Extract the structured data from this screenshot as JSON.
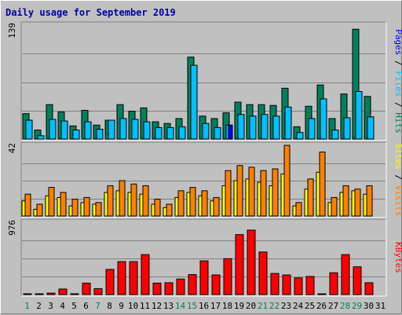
{
  "chart_data": {
    "type": "bar",
    "title": "Daily usage for September 2019",
    "categories": [
      "1",
      "2",
      "3",
      "4",
      "5",
      "6",
      "7",
      "8",
      "9",
      "10",
      "11",
      "12",
      "13",
      "14",
      "15",
      "16",
      "17",
      "18",
      "19",
      "20",
      "21",
      "22",
      "23",
      "24",
      "25",
      "26",
      "27",
      "28",
      "29",
      "30",
      "31"
    ],
    "weekend_days": [
      "1",
      "7",
      "14",
      "15",
      "21",
      "22",
      "28",
      "29"
    ],
    "panels": [
      {
        "id": "hits-files-pages",
        "axis_max_label": "139",
        "ylim": [
          0,
          139
        ],
        "series": [
          {
            "name": "Hits",
            "color": "#00805c",
            "values": [
              31,
              11,
              42,
              33,
              16,
              35,
              17,
              23,
              42,
              34,
              38,
              21,
              19,
              25,
              100,
              28,
              25,
              32,
              45,
              42,
              42,
              41,
              62,
              15,
              40,
              66,
              25,
              55,
              134,
              52,
              0
            ]
          },
          {
            "name": "Files",
            "color": "#00c0ff",
            "values": [
              23,
              4,
              24,
              22,
              11,
              21,
              12,
              23,
              25,
              24,
              21,
              14,
              14,
              15,
              90,
              19,
              14,
              17,
              30,
              28,
              30,
              28,
              39,
              8,
              25,
              49,
              11,
              26,
              58,
              27,
              0
            ]
          },
          {
            "name": "Pages",
            "color": "#0000ff",
            "values": [
              0,
              0,
              0,
              0,
              0,
              0,
              0,
              0,
              0,
              0,
              0,
              0,
              0,
              0,
              0,
              0,
              0,
              17,
              0,
              0,
              0,
              0,
              0,
              0,
              0,
              0,
              0,
              0,
              0,
              0,
              0
            ]
          }
        ],
        "legend": [
          "Pages",
          "Files",
          "Hits"
        ]
      },
      {
        "id": "visits-sites",
        "axis_max_label": "42",
        "ylim": [
          0,
          42
        ],
        "series": [
          {
            "name": "Visits",
            "color": "#ff8000",
            "values": [
              13,
              7,
              17,
              14,
              10,
              11,
              8,
              18,
              21,
              19,
              18,
              10,
              7,
              15,
              17,
              15,
              11,
              27,
              30,
              29,
              27,
              28,
              42,
              8,
              22,
              38,
              11,
              18,
              16,
              18,
              0
            ]
          },
          {
            "name": "Sites",
            "color": "#ffff00",
            "values": [
              9,
              4,
              12,
              11,
              6,
              8,
              7,
              14,
              15,
              14,
              13,
              7,
              5,
              11,
              14,
              12,
              9,
              18,
              21,
              22,
              20,
              18,
              25,
              6,
              16,
              26,
              8,
              14,
              15,
              13,
              0
            ]
          }
        ],
        "legend": [
          "Sites",
          "Visits"
        ]
      },
      {
        "id": "kbytes",
        "axis_max_label": "976",
        "ylim": [
          0,
          976
        ],
        "series": [
          {
            "name": "KBytes",
            "color": "#ff0000",
            "values": [
              3,
              3,
              20,
              75,
              3,
              155,
              80,
              340,
              445,
              445,
              540,
              155,
              160,
              210,
              270,
              455,
              265,
              485,
              810,
              870,
              575,
              285,
              265,
              225,
              245,
              10,
              295,
              540,
              375,
              160,
              0
            ]
          }
        ],
        "legend": [
          "KBytes"
        ]
      }
    ]
  }
}
